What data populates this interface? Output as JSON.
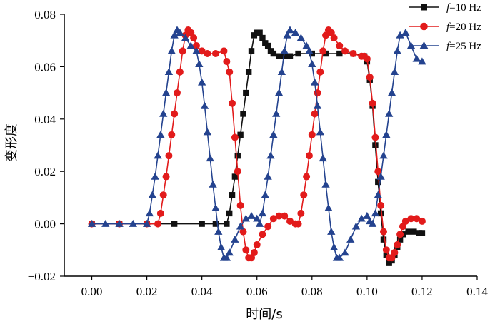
{
  "chart_data": {
    "type": "line",
    "title": "",
    "xlabel": "时间/s",
    "ylabel": "变形度",
    "xlim": [
      -0.01,
      0.14
    ],
    "ylim": [
      -0.02,
      0.08
    ],
    "xticks": [
      "0.00",
      "0.02",
      "0.04",
      "0.06",
      "0.08",
      "0.10",
      "0.12",
      "0.14"
    ],
    "yticks": [
      "-0.02",
      "0.00",
      "0.02",
      "0.04",
      "0.06",
      "0.08"
    ],
    "grid": false,
    "legend_position": "top-right",
    "series": [
      {
        "name": "f=10 Hz",
        "color": "#111111",
        "marker": "square",
        "x": [
          0.0,
          0.01,
          0.02,
          0.03,
          0.04,
          0.045,
          0.049,
          0.05,
          0.051,
          0.052,
          0.053,
          0.054,
          0.055,
          0.056,
          0.057,
          0.058,
          0.059,
          0.06,
          0.061,
          0.062,
          0.063,
          0.064,
          0.065,
          0.066,
          0.068,
          0.07,
          0.072,
          0.075,
          0.08,
          0.085,
          0.09,
          0.095,
          0.099,
          0.1,
          0.101,
          0.102,
          0.103,
          0.104,
          0.105,
          0.106,
          0.107,
          0.108,
          0.109,
          0.11,
          0.111,
          0.112,
          0.113,
          0.115,
          0.117,
          0.119,
          0.12
        ],
        "y": [
          0.0,
          0.0,
          0.0,
          0.0,
          0.0,
          0.0,
          0.0,
          0.004,
          0.011,
          0.018,
          0.026,
          0.034,
          0.042,
          0.05,
          0.058,
          0.066,
          0.072,
          0.073,
          0.073,
          0.071,
          0.069,
          0.068,
          0.066,
          0.065,
          0.064,
          0.064,
          0.064,
          0.065,
          0.065,
          0.065,
          0.065,
          0.065,
          0.064,
          0.062,
          0.055,
          0.045,
          0.03,
          0.016,
          0.004,
          -0.006,
          -0.012,
          -0.015,
          -0.014,
          -0.012,
          -0.009,
          -0.006,
          -0.004,
          -0.003,
          -0.003,
          -0.0035,
          -0.0035
        ]
      },
      {
        "name": "f=20 Hz",
        "color": "#e21b1b",
        "marker": "circle",
        "x": [
          0.0,
          0.01,
          0.02,
          0.024,
          0.025,
          0.026,
          0.027,
          0.028,
          0.029,
          0.03,
          0.031,
          0.032,
          0.033,
          0.034,
          0.035,
          0.036,
          0.037,
          0.038,
          0.04,
          0.042,
          0.045,
          0.048,
          0.049,
          0.05,
          0.051,
          0.052,
          0.053,
          0.054,
          0.055,
          0.056,
          0.057,
          0.058,
          0.059,
          0.06,
          0.062,
          0.064,
          0.066,
          0.068,
          0.07,
          0.072,
          0.074,
          0.075,
          0.076,
          0.077,
          0.078,
          0.079,
          0.08,
          0.081,
          0.082,
          0.083,
          0.084,
          0.085,
          0.086,
          0.087,
          0.088,
          0.09,
          0.092,
          0.095,
          0.098,
          0.099,
          0.1,
          0.101,
          0.102,
          0.103,
          0.104,
          0.105,
          0.106,
          0.107,
          0.108,
          0.109,
          0.11,
          0.111,
          0.112,
          0.113,
          0.114,
          0.116,
          0.118,
          0.12
        ],
        "y": [
          0.0,
          0.0,
          0.0,
          0.0,
          0.004,
          0.011,
          0.018,
          0.026,
          0.034,
          0.042,
          0.05,
          0.058,
          0.066,
          0.072,
          0.074,
          0.073,
          0.071,
          0.068,
          0.066,
          0.065,
          0.065,
          0.066,
          0.062,
          0.058,
          0.046,
          0.033,
          0.02,
          0.007,
          -0.003,
          -0.01,
          -0.013,
          -0.013,
          -0.011,
          -0.008,
          -0.004,
          -0.001,
          0.002,
          0.003,
          0.003,
          0.001,
          0.0,
          0.0,
          0.004,
          0.011,
          0.018,
          0.026,
          0.034,
          0.042,
          0.05,
          0.058,
          0.066,
          0.072,
          0.074,
          0.073,
          0.071,
          0.068,
          0.066,
          0.065,
          0.064,
          0.064,
          0.063,
          0.056,
          0.046,
          0.033,
          0.02,
          0.007,
          -0.003,
          -0.01,
          -0.013,
          -0.013,
          -0.011,
          -0.008,
          -0.004,
          -0.001,
          0.001,
          0.002,
          0.002,
          0.001
        ]
      },
      {
        "name": "f=25 Hz",
        "color": "#24438f",
        "marker": "triangle",
        "x": [
          0.0,
          0.005,
          0.01,
          0.015,
          0.02,
          0.021,
          0.022,
          0.023,
          0.024,
          0.025,
          0.026,
          0.027,
          0.028,
          0.029,
          0.03,
          0.031,
          0.032,
          0.034,
          0.036,
          0.038,
          0.039,
          0.04,
          0.041,
          0.042,
          0.043,
          0.044,
          0.045,
          0.046,
          0.047,
          0.048,
          0.049,
          0.05,
          0.052,
          0.054,
          0.056,
          0.058,
          0.06,
          0.061,
          0.062,
          0.063,
          0.064,
          0.065,
          0.066,
          0.067,
          0.068,
          0.069,
          0.07,
          0.071,
          0.072,
          0.074,
          0.076,
          0.078,
          0.079,
          0.08,
          0.081,
          0.082,
          0.083,
          0.084,
          0.085,
          0.086,
          0.087,
          0.088,
          0.089,
          0.09,
          0.092,
          0.094,
          0.096,
          0.098,
          0.1,
          0.101,
          0.102,
          0.103,
          0.104,
          0.105,
          0.106,
          0.107,
          0.108,
          0.109,
          0.11,
          0.111,
          0.112,
          0.114,
          0.116,
          0.118,
          0.12
        ],
        "y": [
          0.0,
          0.0,
          0.0,
          0.0,
          0.0,
          0.004,
          0.011,
          0.018,
          0.026,
          0.034,
          0.042,
          0.05,
          0.058,
          0.066,
          0.072,
          0.074,
          0.073,
          0.071,
          0.068,
          0.066,
          0.061,
          0.054,
          0.045,
          0.035,
          0.025,
          0.015,
          0.006,
          -0.003,
          -0.009,
          -0.013,
          -0.013,
          -0.011,
          -0.006,
          -0.001,
          0.002,
          0.003,
          0.002,
          0.0,
          0.004,
          0.011,
          0.018,
          0.026,
          0.034,
          0.042,
          0.05,
          0.058,
          0.066,
          0.072,
          0.074,
          0.073,
          0.071,
          0.068,
          0.066,
          0.061,
          0.054,
          0.045,
          0.035,
          0.025,
          0.015,
          0.006,
          -0.003,
          -0.009,
          -0.013,
          -0.013,
          -0.011,
          -0.006,
          -0.001,
          0.002,
          0.003,
          0.001,
          0.0,
          0.004,
          0.011,
          0.018,
          0.026,
          0.034,
          0.042,
          0.05,
          0.058,
          0.066,
          0.072,
          0.073,
          0.068,
          0.063,
          0.062
        ]
      }
    ]
  }
}
